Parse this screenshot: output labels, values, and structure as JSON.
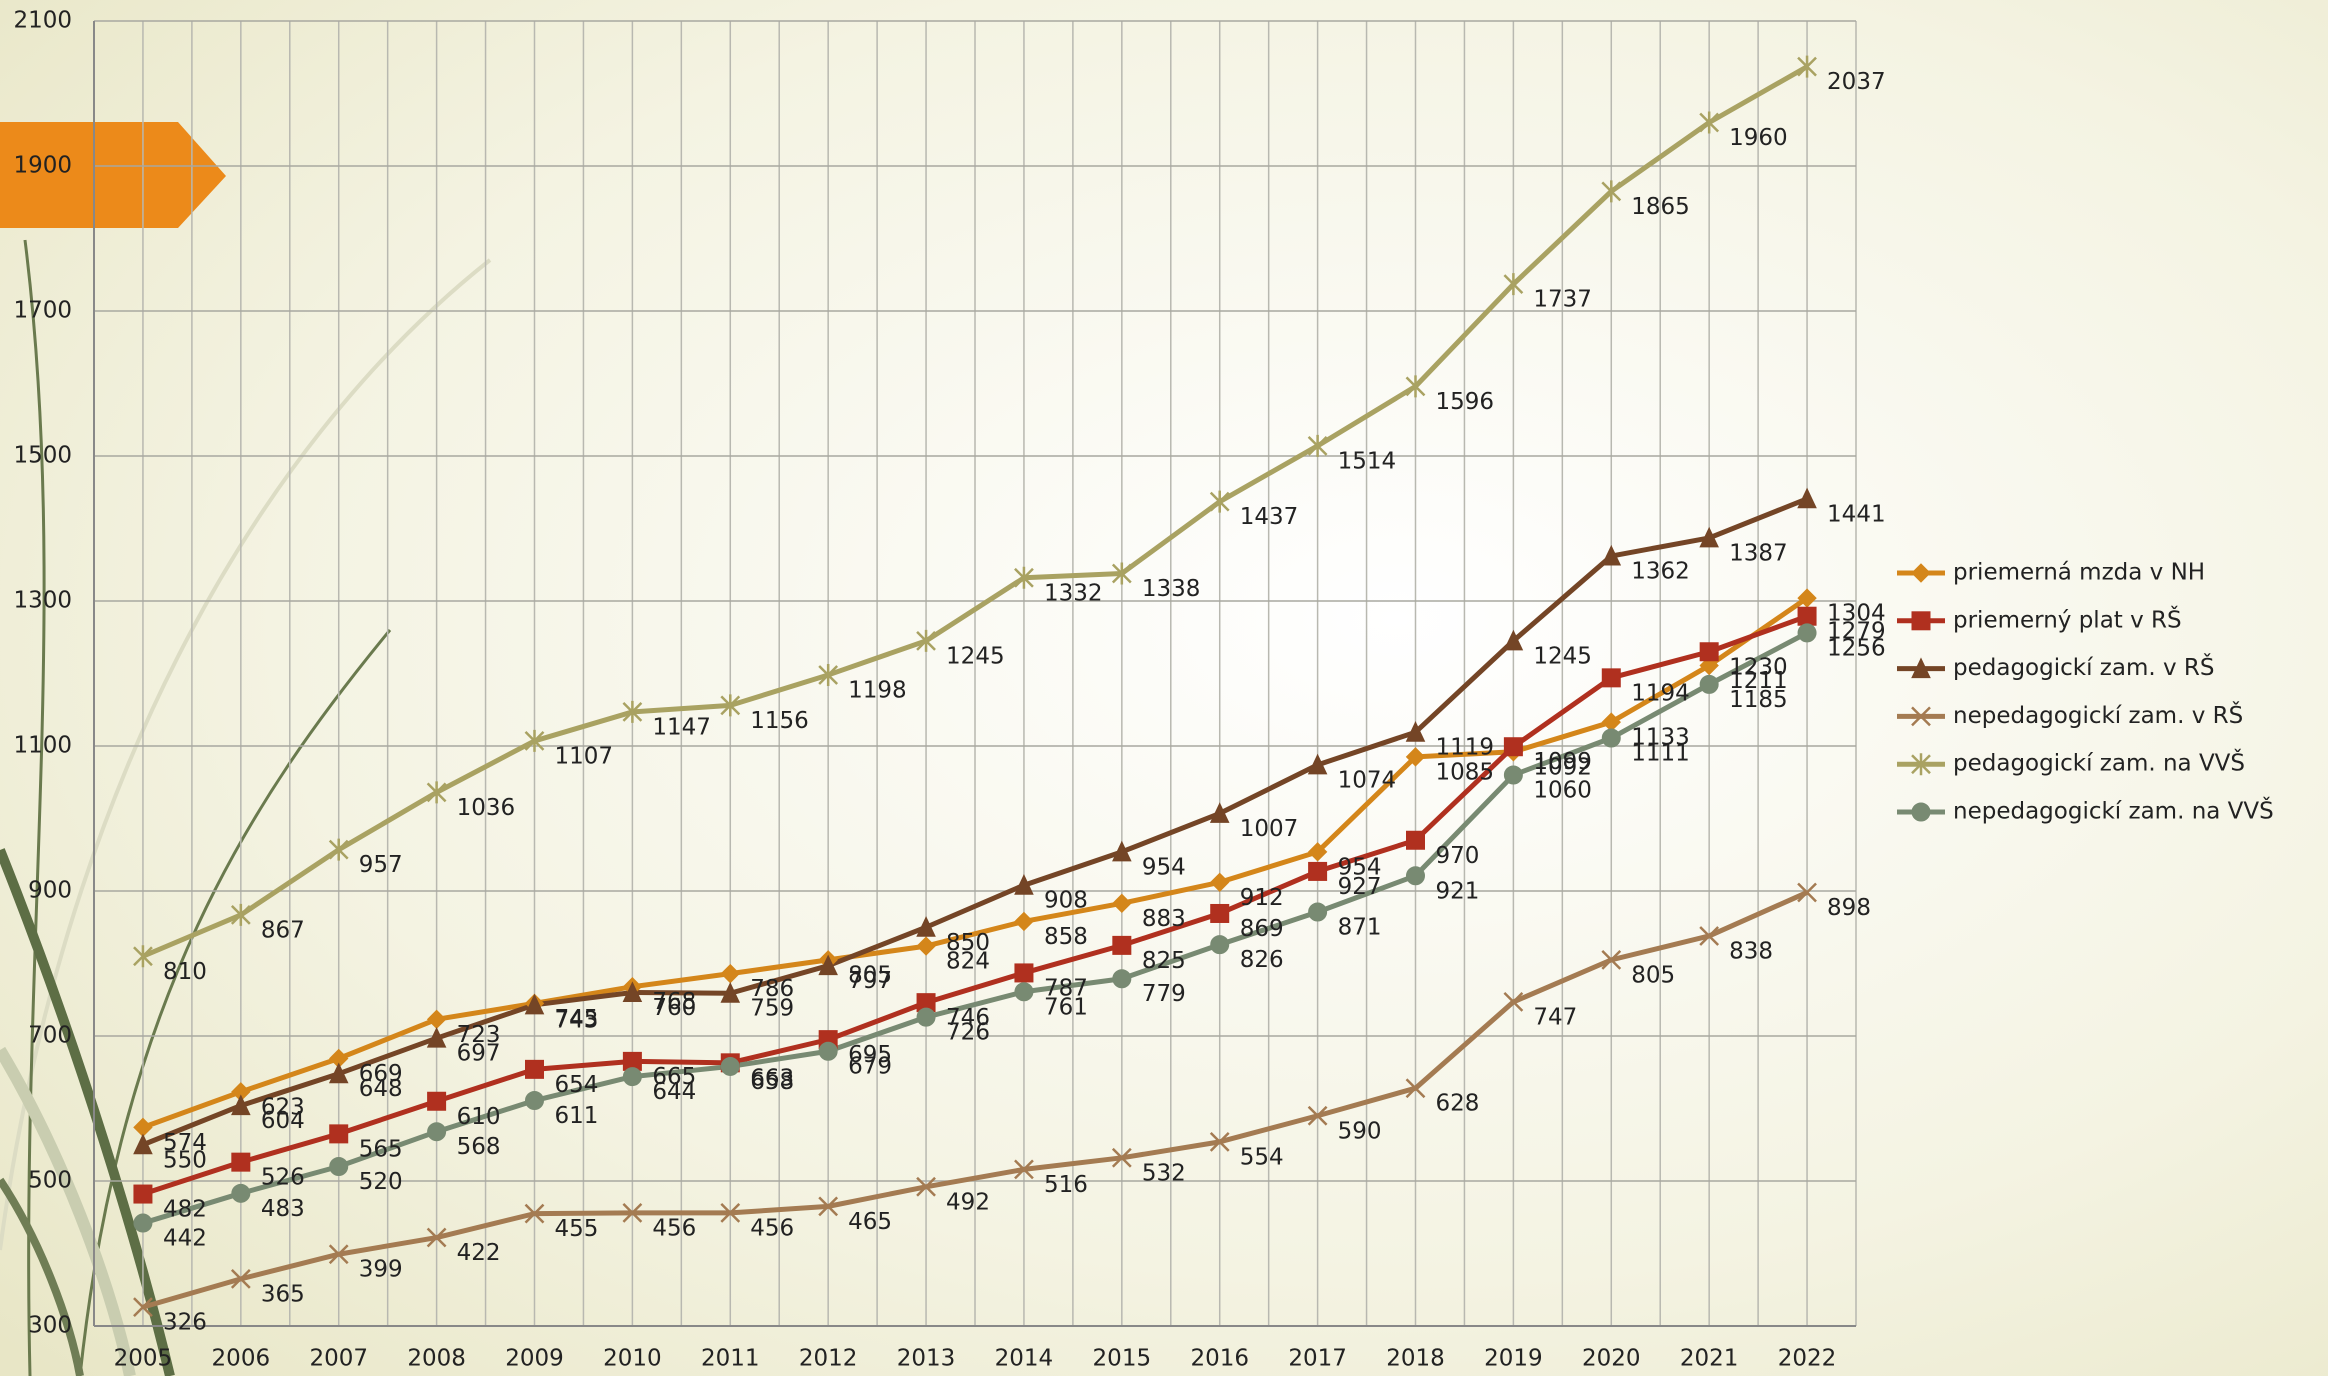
{
  "chart_data": {
    "type": "line",
    "categories": [
      "2005",
      "2006",
      "2007",
      "2008",
      "2009",
      "2010",
      "2011",
      "2012",
      "2013",
      "2014",
      "2015",
      "2016",
      "2017",
      "2018",
      "2019",
      "2020",
      "2021",
      "2022"
    ],
    "ylim": [
      300,
      2100
    ],
    "yticks": [
      300,
      500,
      700,
      900,
      1100,
      1300,
      1500,
      1700,
      1900,
      2100
    ],
    "grid": true,
    "legend": "right",
    "series": [
      {
        "name": "priemerná mzda v NH",
        "color": "#d4861a",
        "marker": "diamond",
        "values": [
          574,
          623,
          669,
          723,
          745,
          768,
          786,
          805,
          824,
          858,
          883,
          912,
          954,
          1085,
          1092,
          1133,
          1211,
          1304
        ]
      },
      {
        "name": "priemerný plat v RŠ",
        "color": "#b0301f",
        "marker": "square",
        "values": [
          482,
          526,
          565,
          610,
          654,
          665,
          663,
          695,
          746,
          787,
          825,
          869,
          927,
          970,
          1099,
          1194,
          1230,
          1279
        ]
      },
      {
        "name": "pedagogickí zam. v RŠ",
        "color": "#744526",
        "marker": "triangle",
        "values": [
          550,
          604,
          648,
          697,
          743,
          760,
          759,
          797,
          850,
          908,
          954,
          1007,
          1074,
          1119,
          1245,
          1362,
          1387,
          1441
        ]
      },
      {
        "name": "nepedagogickí zam. v RŠ",
        "color": "#a47b52",
        "marker": "cross",
        "values": [
          326,
          365,
          399,
          422,
          455,
          456,
          456,
          465,
          492,
          516,
          532,
          554,
          590,
          628,
          747,
          805,
          838,
          898
        ]
      },
      {
        "name": "pedagogickí zam. na VVŠ",
        "color": "#a9a262",
        "marker": "star",
        "values": [
          810,
          867,
          957,
          1036,
          1107,
          1147,
          1156,
          1198,
          1245,
          1332,
          1338,
          1437,
          1514,
          1596,
          1737,
          1865,
          1960,
          2037
        ]
      },
      {
        "name": "nepedagogickí zam. na VVŠ",
        "color": "#788a72",
        "marker": "circle",
        "values": [
          442,
          483,
          520,
          568,
          611,
          644,
          658,
          679,
          726,
          761,
          779,
          826,
          871,
          921,
          1060,
          1111,
          1185,
          1256
        ]
      }
    ]
  }
}
